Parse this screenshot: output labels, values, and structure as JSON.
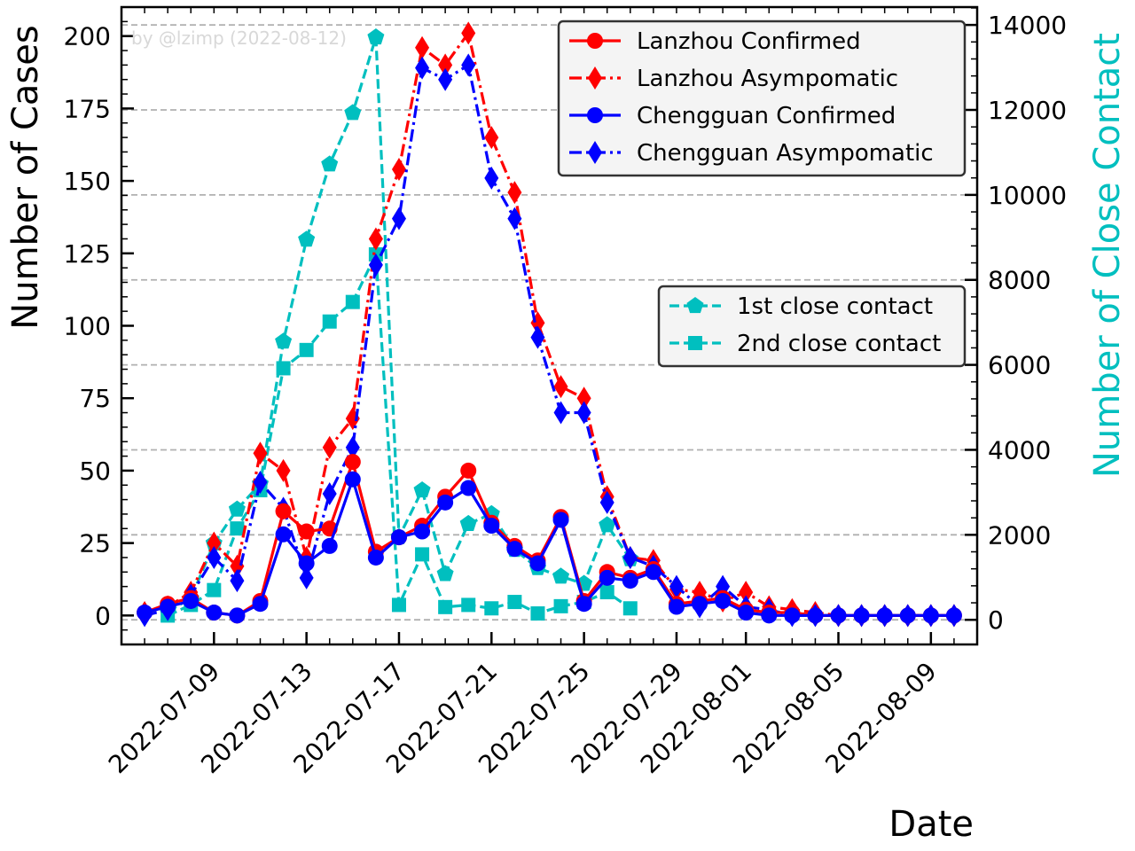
{
  "chart_data": {
    "type": "line",
    "watermark": "by @lzimp (2022-08-12)",
    "xlabel": "Date",
    "ylabel": "Number of Cases",
    "y2label": "Number of Close Contact",
    "xlim": [
      "2022-07-05",
      "2022-08-11"
    ],
    "ylim": [
      -10,
      210
    ],
    "y2lim": [
      -580,
      14420
    ],
    "x_ticks": [
      "2022-07-09",
      "2022-07-13",
      "2022-07-17",
      "2022-07-21",
      "2022-07-25",
      "2022-07-29",
      "2022-08-01",
      "2022-08-05",
      "2022-08-09"
    ],
    "y_ticks": [
      0,
      25,
      50,
      75,
      100,
      125,
      150,
      175,
      200
    ],
    "y2_ticks": [
      0,
      2000,
      4000,
      6000,
      8000,
      10000,
      12000,
      14000
    ],
    "grid": "horizontal dashed",
    "colors": {
      "lanzhou": "#ff0000",
      "chengguan": "#0000ff",
      "contact": "#00bfbf",
      "grid": "#b0b0b0"
    },
    "legend_cases": {
      "placement": "top-right",
      "entries": [
        "Lanzhou Confirmed",
        "Lanzhou Asympomatic",
        "Chengguan Confirmed",
        "Chengguan Asympomatic"
      ]
    },
    "legend_contacts": {
      "placement": "center-right",
      "entries": [
        "1st close contact",
        "2nd close contact"
      ]
    },
    "series": [
      {
        "name": "Lanzhou Confirmed",
        "axis": "left",
        "color": "#ff0000",
        "line": "solid",
        "marker": "circle",
        "x": [
          "2022-07-06",
          "2022-07-07",
          "2022-07-08",
          "2022-07-09",
          "2022-07-10",
          "2022-07-11",
          "2022-07-12",
          "2022-07-13",
          "2022-07-14",
          "2022-07-15",
          "2022-07-16",
          "2022-07-17",
          "2022-07-18",
          "2022-07-19",
          "2022-07-20",
          "2022-07-21",
          "2022-07-22",
          "2022-07-23",
          "2022-07-24",
          "2022-07-25",
          "2022-07-26",
          "2022-07-27",
          "2022-07-28",
          "2022-07-29",
          "2022-07-30",
          "2022-07-31",
          "2022-08-01",
          "2022-08-02",
          "2022-08-03",
          "2022-08-04",
          "2022-08-05",
          "2022-08-06",
          "2022-08-07",
          "2022-08-08",
          "2022-08-09",
          "2022-08-10"
        ],
        "y": [
          1,
          4,
          6,
          1,
          0,
          5,
          36,
          29,
          30,
          53,
          22,
          27,
          31,
          41,
          50,
          32,
          24,
          19,
          34,
          5,
          15,
          13,
          16,
          4,
          5,
          6,
          2,
          1,
          1,
          0,
          0,
          0,
          0,
          0,
          0,
          0
        ]
      },
      {
        "name": "Lanzhou Asympomatic",
        "axis": "left",
        "color": "#ff0000",
        "line": "dashdot",
        "marker": "thin_diamond",
        "x": [
          "2022-07-06",
          "2022-07-07",
          "2022-07-08",
          "2022-07-09",
          "2022-07-10",
          "2022-07-11",
          "2022-07-12",
          "2022-07-13",
          "2022-07-14",
          "2022-07-15",
          "2022-07-16",
          "2022-07-17",
          "2022-07-18",
          "2022-07-19",
          "2022-07-20",
          "2022-07-21",
          "2022-07-22",
          "2022-07-23",
          "2022-07-24",
          "2022-07-25",
          "2022-07-26",
          "2022-07-27",
          "2022-07-28",
          "2022-07-29",
          "2022-07-30",
          "2022-07-31",
          "2022-08-01",
          "2022-08-02",
          "2022-08-03",
          "2022-08-04",
          "2022-08-05",
          "2022-08-06",
          "2022-08-07",
          "2022-08-08",
          "2022-08-09",
          "2022-08-10"
        ],
        "y": [
          1,
          3,
          8,
          25,
          17,
          56,
          50,
          20,
          58,
          68,
          130,
          154,
          196,
          190,
          201,
          165,
          146,
          101,
          79,
          75,
          41,
          20,
          19,
          9,
          8,
          5,
          8,
          3,
          2,
          1,
          0,
          0,
          0,
          0,
          0,
          0
        ]
      },
      {
        "name": "Chengguan Confirmed",
        "axis": "left",
        "color": "#0000ff",
        "line": "solid",
        "marker": "circle",
        "x": [
          "2022-07-06",
          "2022-07-07",
          "2022-07-08",
          "2022-07-09",
          "2022-07-10",
          "2022-07-11",
          "2022-07-12",
          "2022-07-13",
          "2022-07-14",
          "2022-07-15",
          "2022-07-16",
          "2022-07-17",
          "2022-07-18",
          "2022-07-19",
          "2022-07-20",
          "2022-07-21",
          "2022-07-22",
          "2022-07-23",
          "2022-07-24",
          "2022-07-25",
          "2022-07-26",
          "2022-07-27",
          "2022-07-28",
          "2022-07-29",
          "2022-07-30",
          "2022-07-31",
          "2022-08-01",
          "2022-08-02",
          "2022-08-03",
          "2022-08-04",
          "2022-08-05",
          "2022-08-06",
          "2022-08-07",
          "2022-08-08",
          "2022-08-09",
          "2022-08-10"
        ],
        "y": [
          1,
          3,
          5,
          1,
          0,
          4,
          28,
          18,
          24,
          47,
          20,
          27,
          29,
          39,
          44,
          31,
          23,
          18,
          33,
          4,
          13,
          12,
          15,
          3,
          4,
          5,
          1,
          0,
          0,
          0,
          0,
          0,
          0,
          0,
          0,
          0
        ]
      },
      {
        "name": "Chengguan Asympomatic",
        "axis": "left",
        "color": "#0000ff",
        "line": "dashdot",
        "marker": "thin_diamond",
        "x": [
          "2022-07-06",
          "2022-07-07",
          "2022-07-08",
          "2022-07-09",
          "2022-07-10",
          "2022-07-11",
          "2022-07-12",
          "2022-07-13",
          "2022-07-14",
          "2022-07-15",
          "2022-07-16",
          "2022-07-17",
          "2022-07-18",
          "2022-07-19",
          "2022-07-20",
          "2022-07-21",
          "2022-07-22",
          "2022-07-23",
          "2022-07-24",
          "2022-07-25",
          "2022-07-26",
          "2022-07-27",
          "2022-07-28",
          "2022-07-29",
          "2022-07-30",
          "2022-07-31",
          "2022-08-01",
          "2022-08-02",
          "2022-08-03",
          "2022-08-04",
          "2022-08-05",
          "2022-08-06",
          "2022-08-07",
          "2022-08-08",
          "2022-08-09",
          "2022-08-10"
        ],
        "y": [
          0,
          2,
          7,
          20,
          12,
          46,
          37,
          13,
          42,
          58,
          121,
          137,
          189,
          185,
          190,
          151,
          137,
          96,
          70,
          70,
          39,
          20,
          17,
          10,
          3,
          10,
          3,
          2,
          0,
          0,
          0,
          0,
          0,
          0,
          0,
          0
        ]
      },
      {
        "name": "1st close contact",
        "axis": "right",
        "color": "#00bfbf",
        "line": "dashed",
        "marker": "pentagon",
        "x": [
          "2022-07-07",
          "2022-07-08",
          "2022-07-09",
          "2022-07-10",
          "2022-07-11",
          "2022-07-12",
          "2022-07-13",
          "2022-07-14",
          "2022-07-15",
          "2022-07-16",
          "2022-07-17",
          "2022-07-18",
          "2022-07-19",
          "2022-07-20",
          "2022-07-21",
          "2022-07-22",
          "2022-07-23",
          "2022-07-24",
          "2022-07-25",
          "2022-07-26",
          "2022-07-27"
        ],
        "y": [
          200,
          500,
          1800,
          2600,
          3200,
          6550,
          8950,
          10720,
          11930,
          13710,
          1950,
          3050,
          1080,
          2260,
          2490,
          1650,
          1220,
          1020,
          850,
          2230,
          1430
        ]
      },
      {
        "name": "2nd close contact",
        "axis": "right",
        "color": "#00bfbf",
        "line": "dashed",
        "marker": "square",
        "x": [
          "2022-07-07",
          "2022-07-08",
          "2022-07-09",
          "2022-07-10",
          "2022-07-11",
          "2022-07-12",
          "2022-07-13",
          "2022-07-14",
          "2022-07-15",
          "2022-07-16",
          "2022-07-17",
          "2022-07-18",
          "2022-07-19",
          "2022-07-20",
          "2022-07-21",
          "2022-07-22",
          "2022-07-23",
          "2022-07-24",
          "2022-07-25",
          "2022-07-26",
          "2022-07-27"
        ],
        "y": [
          100,
          350,
          700,
          2150,
          3050,
          5920,
          6350,
          7020,
          7480,
          8600,
          350,
          1540,
          300,
          350,
          270,
          420,
          150,
          320,
          420,
          650,
          270
        ]
      }
    ]
  }
}
